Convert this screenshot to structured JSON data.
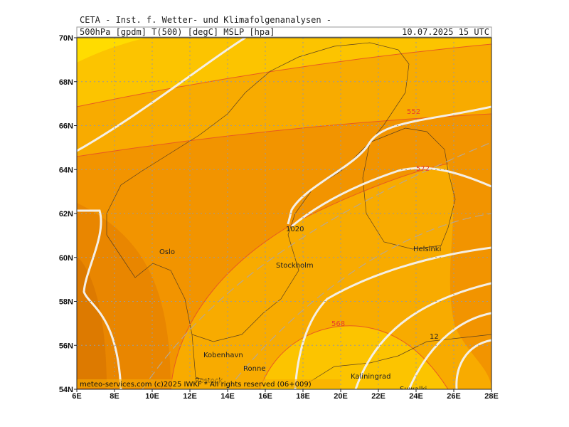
{
  "header": {
    "title": "CETA - Inst. f. Wetter- und Klimafolgenanalysen -",
    "fields": "500hPa [gpdm] T(500) [degC] MSLP [hpa]",
    "valid_time": "10.07.2025 15 UTC"
  },
  "map": {
    "lon_labels": [
      "6E",
      "8E",
      "10E",
      "12E",
      "14E",
      "16E",
      "18E",
      "20E",
      "22E",
      "24E",
      "26E",
      "28E"
    ],
    "lat_labels": [
      "70N",
      "68N",
      "66N",
      "64N",
      "62N",
      "60N",
      "58N",
      "56N",
      "54N"
    ],
    "places": [
      "Oslo",
      "Stockholm",
      "Helsinki",
      "Kobenhavn",
      "Ronne",
      "Kaliningrad",
      "Rostock",
      "Suwalki"
    ],
    "contour_labels": [
      "1020",
      "568",
      "552",
      "572",
      "12"
    ],
    "footer": "meteo-services.com (c)2025 IWKF * All rights reserved (06+009)"
  }
}
